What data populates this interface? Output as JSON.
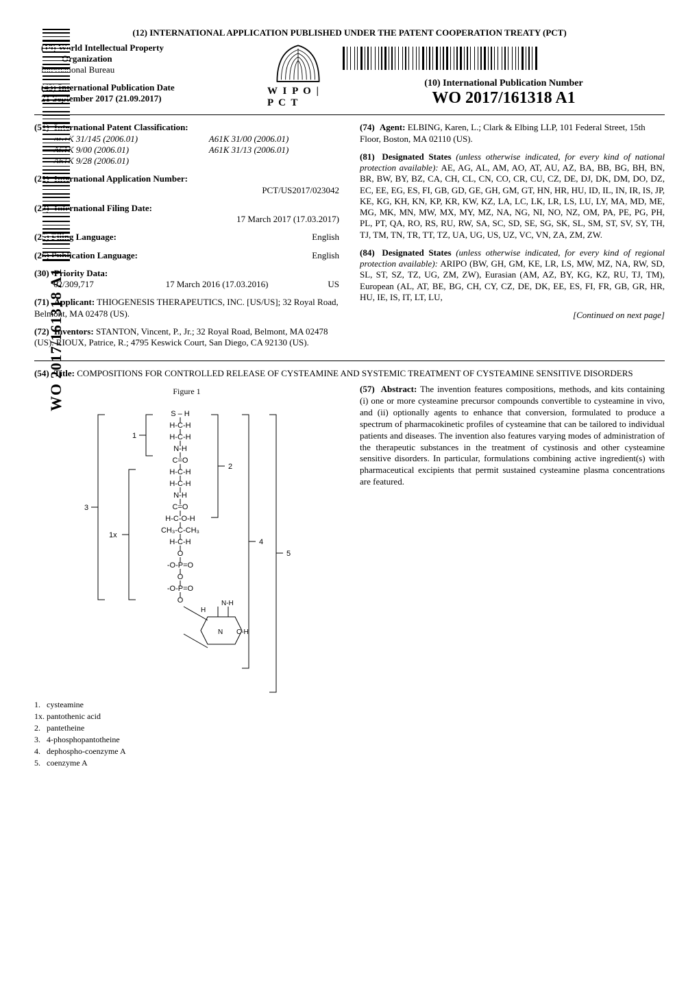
{
  "banner": "(12) INTERNATIONAL APPLICATION PUBLISHED UNDER THE PATENT COOPERATION TREATY (PCT)",
  "org": {
    "line19_lead": "(19) ",
    "line19": "World Intellectual Property",
    "name": "Organization",
    "bureau": "International Bureau"
  },
  "wipo_pct": "W I P O | P C T",
  "pub_date": {
    "inid": "(43) International Publication Date",
    "value": "21 September 2017 (21.09.2017)"
  },
  "pub_no": {
    "label": "(10) International Publication Number",
    "value": "WO 2017/161318 A1"
  },
  "side_doc": "WO 2017/161318 A1",
  "left": {
    "ipc": {
      "inid": "(51)",
      "label": "International Patent Classification:",
      "codes": [
        [
          "A61K 31/145 (2006.01)",
          "A61K 31/00 (2006.01)"
        ],
        [
          "A61K 9/00 (2006.01)",
          "A61K 31/13 (2006.01)"
        ],
        [
          "A61K 9/28 (2006.01)",
          ""
        ]
      ]
    },
    "appno": {
      "inid": "(21)",
      "label": "International Application Number:",
      "value": "PCT/US2017/023042"
    },
    "filing": {
      "inid": "(22)",
      "label": "International Filing Date:",
      "value": "17 March 2017 (17.03.2017)"
    },
    "filing_lang": {
      "inid": "(25)",
      "label": "Filing Language:",
      "value": "English"
    },
    "pub_lang": {
      "inid": "(26)",
      "label": "Publication Language:",
      "value": "English"
    },
    "priority": {
      "inid": "(30)",
      "label": "Priority Data:",
      "num": "62/309,717",
      "date": "17 March 2016 (17.03.2016)",
      "cc": "US"
    },
    "applicant": {
      "inid": "(71)",
      "label": "Applicant:",
      "value": "THIOGENESIS THERAPEUTICS, INC. [US/US]; 32 Royal Road, Belmont, MA 02478 (US)."
    },
    "inventors": {
      "inid": "(72)",
      "label": "Inventors:",
      "value": "STANTON, Vincent, P., Jr.; 32 Royal Road, Belmont, MA 02478 (US). RIOUX, Patrice, R.; 4795 Keswick Court, San Diego, CA 92130 (US)."
    }
  },
  "right": {
    "agent": {
      "inid": "(74)",
      "label": "Agent:",
      "value": "ELBING, Karen, L.; Clark & Elbing LLP, 101 Federal Street, 15th Floor, Boston, MA 02110 (US)."
    },
    "desig81": {
      "inid": "(81)",
      "label": "Designated States",
      "qual": "(unless otherwise indicated, for every kind of national protection available):",
      "value": "AE, AG, AL, AM, AO, AT, AU, AZ, BA, BB, BG, BH, BN, BR, BW, BY, BZ, CA, CH, CL, CN, CO, CR, CU, CZ, DE, DJ, DK, DM, DO, DZ, EC, EE, EG, ES, FI, GB, GD, GE, GH, GM, GT, HN, HR, HU, ID, IL, IN, IR, IS, JP, KE, KG, KH, KN, KP, KR, KW, KZ, LA, LC, LK, LR, LS, LU, LY, MA, MD, ME, MG, MK, MN, MW, MX, MY, MZ, NA, NG, NI, NO, NZ, OM, PA, PE, PG, PH, PL, PT, QA, RO, RS, RU, RW, SA, SC, SD, SE, SG, SK, SL, SM, ST, SV, SY, TH, TJ, TM, TN, TR, TT, TZ, UA, UG, US, UZ, VC, VN, ZA, ZM, ZW."
    },
    "desig84": {
      "inid": "(84)",
      "label": "Designated States",
      "qual": "(unless otherwise indicated, for every kind of regional protection available):",
      "value": "ARIPO (BW, GH, GM, KE, LR, LS, MW, MZ, NA, RW, SD, SL, ST, SZ, TZ, UG, ZM, ZW), Eurasian (AM, AZ, BY, KG, KZ, RU, TJ, TM), European (AL, AT, BE, BG, CH, CY, CZ, DE, DK, EE, ES, FI, FR, GB, GR, HR, HU, IE, IS, IT, LT, LU,"
    },
    "continued": "[Continued on next page]"
  },
  "title": {
    "inid": "(54)",
    "label": "Title:",
    "value": "COMPOSITIONS FOR CONTROLLED RELEASE OF CYSTEAMINE AND SYSTEMIC TREATMENT OF CYSTEAMINE SENSITIVE DISORDERS"
  },
  "figure": {
    "caption": "Figure 1",
    "formula_lines": [
      "S – H",
      "H-C-H",
      "H-C-H",
      "N-H",
      "C=O",
      "H-C-H",
      "H-C-H",
      "N-H",
      "C=O",
      "H-C-O-H",
      "CH₃-C-CH₃",
      "H-C-H",
      "O",
      "-O-P=O",
      "O",
      "-O-P=O",
      "O"
    ],
    "annot": {
      "a1": "1",
      "a1x": "1x",
      "a2": "2",
      "a3": "3",
      "a4": "4",
      "a5": "5"
    },
    "legend": [
      {
        "n": "1.",
        "t": "cysteamine"
      },
      {
        "n": "1x.",
        "t": "pantothenic acid"
      },
      {
        "n": "2.",
        "t": "pantetheine"
      },
      {
        "n": "3.",
        "t": "4-phosphopantotheine"
      },
      {
        "n": "4.",
        "t": "dephospho-coenzyme A"
      },
      {
        "n": "5.",
        "t": "coenzyme A"
      }
    ],
    "colors": {
      "stroke": "#000000",
      "text": "#000000"
    },
    "line_width": 1,
    "font_size": 11
  },
  "abstract": {
    "inid": "(57)",
    "label": "Abstract:",
    "text": "The invention features compositions, methods, and kits containing (i) one or more cysteamine precursor compounds convertible to cysteamine in vivo, and (ii) optionally agents to enhance that conversion, formulated to produce a spectrum of pharmacokinetic profiles of cysteamine that can be tailored to individual patients and diseases. The invention also features varying modes of administration of the therapeutic substances in the treatment of cystinosis and other cysteamine sensitive disorders. In particular, formulations combining active ingredient(s) with pharmaceutical excipients that permit sustained cysteamine plasma concentrations are featured."
  },
  "barcode": {
    "top_widths": [
      3,
      1,
      1,
      2,
      1,
      3,
      1,
      1,
      1,
      2,
      3,
      1,
      1,
      1,
      2,
      1,
      1,
      3,
      1,
      2,
      1,
      1,
      2,
      1,
      3,
      1,
      1,
      1,
      2,
      1,
      1,
      2,
      1,
      3,
      1,
      1,
      2,
      1,
      1,
      3,
      1,
      2,
      1,
      1,
      1,
      2,
      3,
      1,
      1,
      1,
      2,
      1,
      1,
      2,
      3,
      1,
      1,
      1,
      2,
      1,
      3,
      1,
      1,
      2,
      1,
      1,
      2,
      1,
      3,
      1,
      1,
      1,
      2,
      1,
      1,
      3,
      1,
      2,
      1,
      1,
      2,
      1,
      3,
      1,
      1,
      1,
      2,
      1,
      1,
      2,
      1,
      3,
      1,
      1,
      2,
      1,
      1,
      3,
      1,
      2,
      1,
      1,
      1,
      2,
      3,
      1,
      1,
      1,
      2,
      1,
      1,
      2,
      3,
      1
    ],
    "top_background": "#ffffff",
    "top_bar_color": "#000000",
    "side_count": 120
  }
}
